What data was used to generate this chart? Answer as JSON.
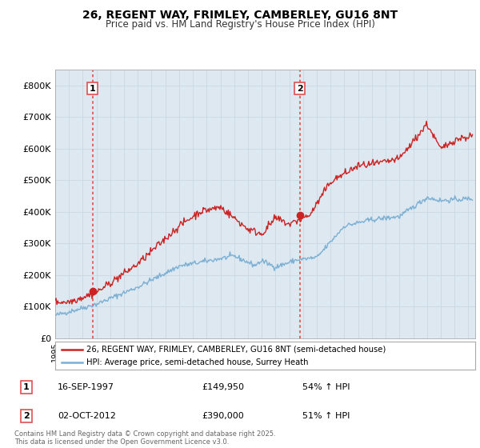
{
  "title_line1": "26, REGENT WAY, FRIMLEY, CAMBERLEY, GU16 8NT",
  "title_line2": "Price paid vs. HM Land Registry's House Price Index (HPI)",
  "ylim": [
    0,
    850000
  ],
  "yticks": [
    0,
    100000,
    200000,
    300000,
    400000,
    500000,
    600000,
    700000,
    800000
  ],
  "ytick_labels": [
    "£0",
    "£100K",
    "£200K",
    "£300K",
    "£400K",
    "£500K",
    "£600K",
    "£700K",
    "£800K"
  ],
  "xlim": [
    1995,
    2025.5
  ],
  "hpi_color": "#7bafd4",
  "price_color": "#cc2222",
  "marker_color": "#cc2222",
  "vline_color": "#e05050",
  "plot_bg_color": "#dde8f0",
  "transaction1_date_x": 1997.71,
  "transaction1_price": 149950,
  "transaction2_date_x": 2012.75,
  "transaction2_price": 390000,
  "legend_line1": "26, REGENT WAY, FRIMLEY, CAMBERLEY, GU16 8NT (semi-detached house)",
  "legend_line2": "HPI: Average price, semi-detached house, Surrey Heath",
  "table_row1": [
    "1",
    "16-SEP-1997",
    "£149,950",
    "54% ↑ HPI"
  ],
  "table_row2": [
    "2",
    "02-OCT-2012",
    "£390,000",
    "51% ↑ HPI"
  ],
  "footnote": "Contains HM Land Registry data © Crown copyright and database right 2025.\nThis data is licensed under the Open Government Licence v3.0.",
  "background_color": "#ffffff",
  "grid_color": "#c8d8e4"
}
